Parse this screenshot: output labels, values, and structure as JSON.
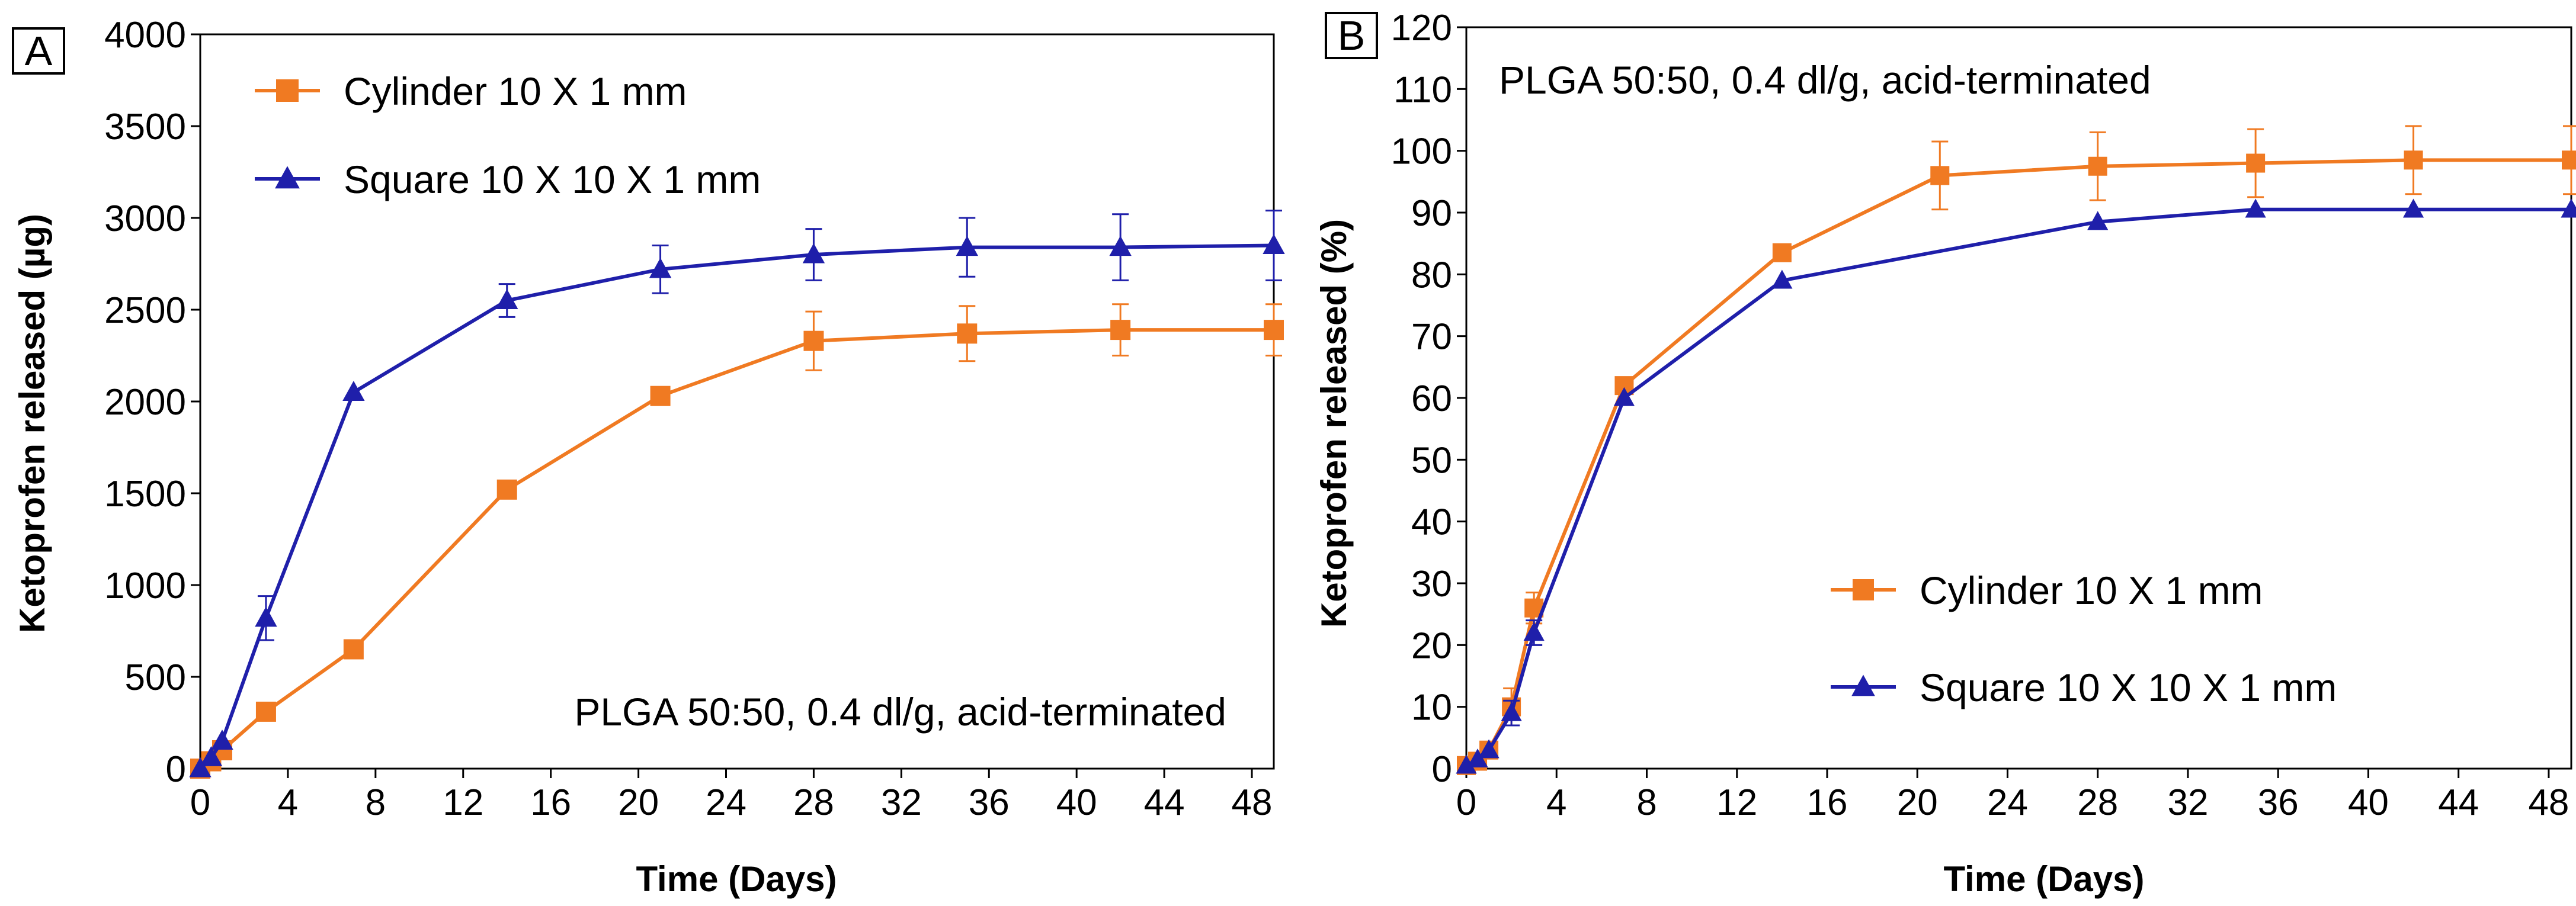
{
  "chart_data": [
    {
      "panel_label": "A",
      "type": "line",
      "title": "",
      "annotation": "PLGA 50:50, 0.4 dl/g, acid-terminated",
      "xlabel": "Time (Days)",
      "ylabel": "Ketoprofen released (µg)",
      "xlim": [
        0,
        49
      ],
      "ylim": [
        0,
        4000
      ],
      "xticks": [
        "0",
        "4",
        "8",
        "12",
        "16",
        "20",
        "24",
        "28",
        "32",
        "36",
        "40",
        "44",
        "48"
      ],
      "yticks": [
        "0",
        "500",
        "1000",
        "1500",
        "2000",
        "2500",
        "3000",
        "3500",
        "4000"
      ],
      "legend_position": "top-left",
      "series": [
        {
          "name": "Cylinder 10 X 1 mm",
          "color": "#F07A22",
          "marker": "square",
          "x": [
            0,
            0.5,
            1,
            3,
            7,
            14,
            21,
            28,
            35,
            42,
            49
          ],
          "values": [
            0,
            40,
            100,
            310,
            650,
            1520,
            2030,
            2330,
            2370,
            2390,
            2390
          ],
          "errors": [
            0,
            0,
            0,
            0,
            0,
            0,
            0,
            160,
            150,
            140,
            140
          ]
        },
        {
          "name": "Square 10 X 10 X 1 mm",
          "color": "#1F1FAA",
          "marker": "triangle",
          "x": [
            0,
            0.5,
            1,
            3,
            7,
            14,
            21,
            28,
            35,
            42,
            49
          ],
          "values": [
            0,
            60,
            150,
            820,
            2050,
            2550,
            2720,
            2800,
            2840,
            2840,
            2850
          ],
          "errors": [
            0,
            0,
            0,
            120,
            0,
            90,
            130,
            140,
            160,
            180,
            190
          ]
        }
      ]
    },
    {
      "panel_label": "B",
      "type": "line",
      "title": "",
      "annotation": "PLGA 50:50, 0.4 dl/g, acid-terminated",
      "xlabel": "Time (Days)",
      "ylabel": "Ketoprofen released (%)",
      "xlim": [
        0,
        49
      ],
      "ylim": [
        0,
        120
      ],
      "xticks": [
        "0",
        "4",
        "8",
        "12",
        "16",
        "20",
        "24",
        "28",
        "32",
        "36",
        "40",
        "44",
        "48"
      ],
      "yticks": [
        "0",
        "10",
        "20",
        "30",
        "40",
        "50",
        "60",
        "70",
        "80",
        "90",
        "100",
        "110",
        "120"
      ],
      "legend_position": "center-right",
      "series": [
        {
          "name": "Cylinder 10 X 1 mm",
          "color": "#F07A22",
          "marker": "square",
          "x": [
            0,
            0.5,
            1,
            2,
            3,
            7,
            14,
            21,
            28,
            35,
            42,
            49
          ],
          "values": [
            0.5,
            1.2,
            3,
            10,
            26,
            62,
            83.5,
            96,
            97.5,
            98,
            98.5,
            98.5
          ],
          "errors": [
            0,
            0,
            0,
            3,
            2.5,
            0,
            0,
            5.5,
            5.5,
            5.5,
            5.5,
            5.5
          ]
        },
        {
          "name": "Square 10 X 10 X 1 mm",
          "color": "#1F1FAA",
          "marker": "triangle",
          "x": [
            0,
            0.5,
            1,
            2,
            3,
            7,
            14,
            28,
            35,
            42,
            49
          ],
          "values": [
            0.5,
            1.5,
            3,
            9,
            22,
            60,
            79,
            88.5,
            90.5,
            90.5,
            90.5
          ],
          "errors": [
            0,
            0,
            0,
            2,
            2,
            0,
            0,
            0,
            0,
            0,
            0
          ]
        }
      ]
    }
  ]
}
